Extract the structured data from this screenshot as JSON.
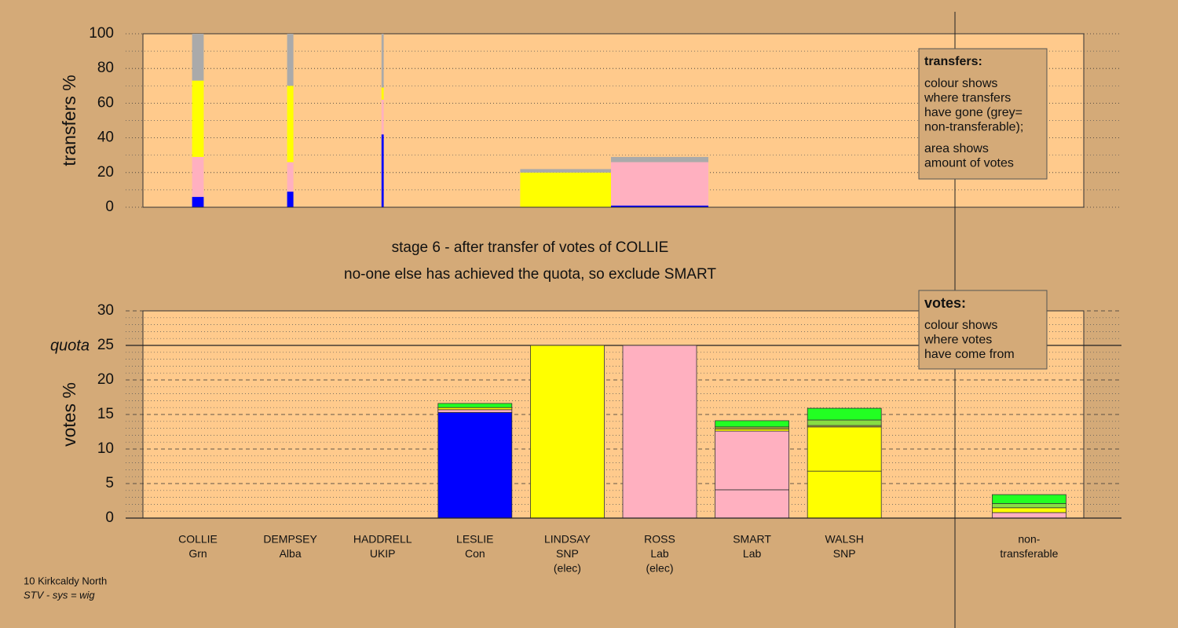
{
  "chart_data": [
    {
      "type": "transfers",
      "ylabel": "transfers %",
      "ylim": [
        0,
        100
      ],
      "yticks": [
        0,
        20,
        40,
        60,
        80,
        100
      ],
      "minor_yticks": [
        10,
        30,
        50,
        70,
        90
      ],
      "transfers": [
        {
          "votes": 0.37,
          "segments": [
            {
              "color": "#0000ff",
              "value": 6
            },
            {
              "color": "#ffb0c0",
              "value": 23
            },
            {
              "color": "#ffff00",
              "value": 44
            },
            {
              "color": "#aaaaaa",
              "value": 27
            }
          ]
        },
        {
          "votes": 0.2,
          "segments": [
            {
              "color": "#0000ff",
              "value": 9
            },
            {
              "color": "#ffb0c0",
              "value": 17
            },
            {
              "color": "#ffff00",
              "value": 44
            },
            {
              "color": "#aaaaaa",
              "value": 30
            }
          ]
        },
        {
          "votes": 0.07,
          "segments": [
            {
              "color": "#0000ff",
              "value": 42
            },
            {
              "color": "#ffb0c0",
              "value": 20
            },
            {
              "color": "#ffff00",
              "value": 7
            },
            {
              "color": "#aaaaaa",
              "value": 31
            }
          ]
        },
        null,
        {
          "votes": 3.0,
          "segments": [
            {
              "color": "#ffff00",
              "value": 20
            },
            {
              "color": "#aaaaaa",
              "value": 2
            }
          ]
        },
        {
          "votes": 3.1,
          "segments": [
            {
              "color": "#0000ff",
              "value": 1
            },
            {
              "color": "#ffb0c0",
              "value": 25
            },
            {
              "color": "#aaaaaa",
              "value": 3
            }
          ]
        },
        null,
        null,
        null,
        null
      ],
      "legend_title": "transfers:",
      "legend_paragraphs": [
        [
          "colour shows",
          "where transfers",
          "have gone (grey=",
          "non-transferable);"
        ],
        [
          "area shows",
          "amount of votes"
        ]
      ]
    },
    {
      "type": "stacked-bar",
      "title": "stage 6 - after transfer of votes of COLLIE",
      "subtitle": "no-one else has achieved the quota, so exclude SMART",
      "ylabel": "votes %",
      "ylim": [
        0,
        30
      ],
      "yticks": [
        0,
        5,
        10,
        15,
        20,
        25,
        30
      ],
      "minor_yticks": [
        1,
        2,
        3,
        4,
        6,
        7,
        8,
        9,
        11,
        12,
        13,
        14,
        16,
        17,
        18,
        19,
        21,
        22,
        23,
        24,
        26,
        27,
        28,
        29
      ],
      "quota": {
        "value": 25,
        "label": "quota"
      },
      "categories": [
        [
          "COLLIE",
          "Grn"
        ],
        [
          "DEMPSEY",
          "Alba"
        ],
        [
          "HADDRELL",
          "UKIP"
        ],
        [
          "LESLIE",
          "Con"
        ],
        [
          "LINDSAY",
          "SNP",
          "(elec)"
        ],
        [
          "ROSS",
          "Lab",
          "(elec)"
        ],
        [
          "SMART",
          "Lab"
        ],
        [
          "WALSH",
          "SNP"
        ],
        null,
        [
          "non-",
          "transferable"
        ]
      ],
      "stacks": [
        [
          {
            "color": "#22ff22",
            "value": 0
          }
        ],
        [
          {
            "color": "#aaaaaa",
            "value": 0
          }
        ],
        [
          {
            "color": "#aaaaaa",
            "value": 0
          }
        ],
        [
          {
            "color": "#0000ff",
            "value": 15.3
          },
          {
            "color": "#ffb0c0",
            "value": 0.4
          },
          {
            "color": "#ffff00",
            "value": 0.3
          },
          {
            "color": "#22ff22",
            "value": 0.6
          }
        ],
        [
          {
            "color": "#ffff00",
            "value": 25
          }
        ],
        [
          {
            "color": "#ffb0c0",
            "value": 25
          }
        ],
        [
          {
            "color": "#ffb0c0",
            "value": 4.1
          },
          {
            "color": "#ffb0c0",
            "value": 8.5
          },
          {
            "color": "#ffff00",
            "value": 0.3
          },
          {
            "color": "#b0b040",
            "value": 0.3
          },
          {
            "color": "#22ff22",
            "value": 0.9
          }
        ],
        [
          {
            "color": "#ffff00",
            "value": 6.8
          },
          {
            "color": "#ffff00",
            "value": 6.4
          },
          {
            "color": "#b0b040",
            "value": 0.2
          },
          {
            "color": "#88dd44",
            "value": 0.8
          },
          {
            "color": "#22ff22",
            "value": 1.7
          }
        ],
        [],
        [
          {
            "color": "#ffb0c0",
            "value": 0.8
          },
          {
            "color": "#ffff00",
            "value": 0.7
          },
          {
            "color": "#88dd44",
            "value": 0.6
          },
          {
            "color": "#22ff22",
            "value": 1.3
          }
        ]
      ],
      "legend_title": "votes:",
      "legend_paragraphs": [
        [
          "colour shows",
          "where votes",
          "have come from"
        ]
      ],
      "annotations": [
        "10 Kirkcaldy North",
        "STV - sys = wig"
      ]
    }
  ]
}
